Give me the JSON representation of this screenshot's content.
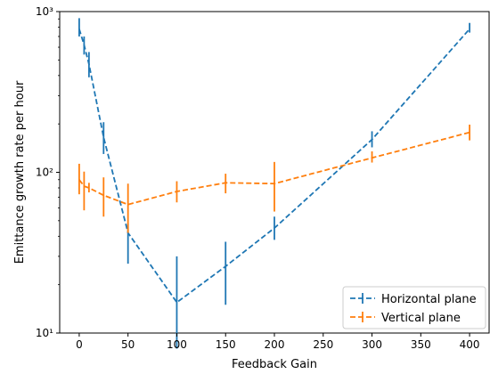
{
  "chart_data": {
    "type": "line",
    "title": "",
    "xlabel": "Feedback Gain",
    "ylabel": "Emittance growth rate per hour",
    "xlim": [
      -20,
      420
    ],
    "ylim": [
      10,
      1000
    ],
    "yscale": "log",
    "grid": false,
    "legend_position": "bottom-right",
    "x_ticks": [
      0,
      50,
      100,
      150,
      200,
      250,
      300,
      350,
      400
    ],
    "x_tick_labels": [
      "0",
      "50",
      "100",
      "150",
      "200",
      "250",
      "300",
      "350",
      "400"
    ],
    "y_ticks": [
      10,
      100,
      1000
    ],
    "y_tick_labels": [
      "10¹",
      "10²",
      "10³"
    ],
    "series": [
      {
        "name": "Horizontal plane",
        "color": "#1f77b4",
        "linestyle": "dashed",
        "x": [
          0,
          5,
          10,
          25,
          50,
          100,
          150,
          200,
          300,
          400
        ],
        "y": [
          780,
          620,
          470,
          165,
          42,
          15.5,
          26,
          45,
          160,
          780
        ],
        "yerr_low": [
          700,
          540,
          390,
          130,
          27,
          8,
          15,
          38,
          143,
          740
        ],
        "yerr_high": [
          910,
          700,
          560,
          205,
          48,
          30,
          37,
          53,
          180,
          850
        ]
      },
      {
        "name": "Vertical plane",
        "color": "#ff7f0e",
        "linestyle": "dashed",
        "x": [
          0,
          5,
          10,
          25,
          50,
          100,
          150,
          200,
          300,
          400
        ],
        "y": [
          90,
          82,
          80,
          72,
          63,
          76,
          86,
          85,
          123,
          177
        ],
        "yerr_low": [
          73,
          58,
          75,
          53,
          42,
          65,
          74,
          57,
          115,
          158
        ],
        "yerr_high": [
          113,
          101,
          86,
          93,
          85,
          88,
          98,
          116,
          135,
          198
        ]
      }
    ]
  }
}
